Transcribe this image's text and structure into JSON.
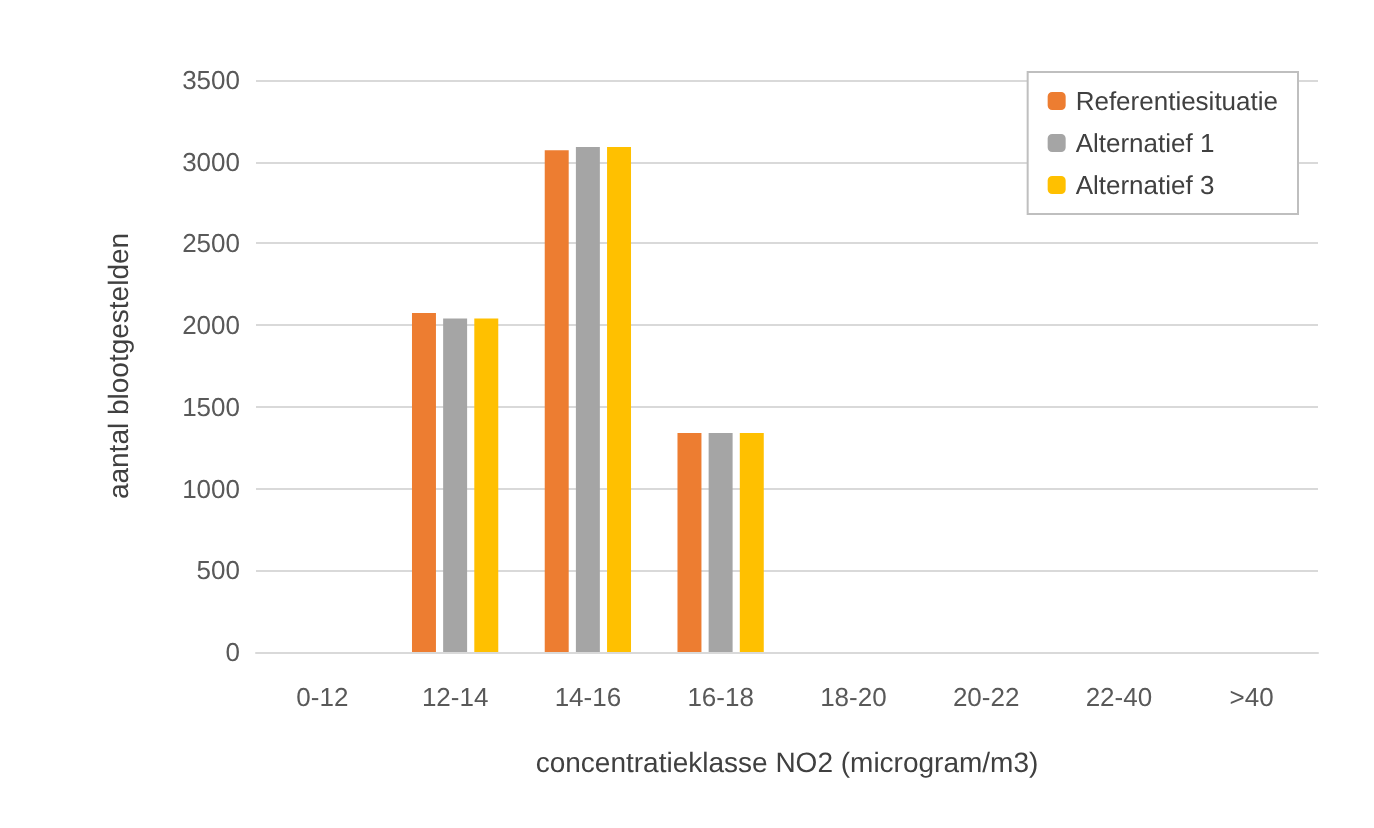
{
  "chart_data": {
    "type": "bar",
    "xlabel": "concentratieklasse NO2 (microgram/m3)",
    "ylabel": "aantal blootgestelden",
    "categories": [
      "0-12",
      "12-14",
      "14-16",
      "16-18",
      "18-20",
      "20-22",
      "22-40",
      ">40"
    ],
    "series": [
      {
        "name": "Referentiesituatie",
        "color": "#ed7d31",
        "values": [
          0,
          2075,
          3070,
          1340,
          0,
          0,
          0,
          0
        ]
      },
      {
        "name": "Alternatief 1",
        "color": "#a5a5a5",
        "values": [
          0,
          2040,
          3090,
          1340,
          0,
          0,
          0,
          0
        ]
      },
      {
        "name": "Alternatief 3",
        "color": "#ffc000",
        "values": [
          0,
          2040,
          3090,
          1340,
          0,
          0,
          0,
          0
        ]
      }
    ],
    "ylim": [
      0,
      3500
    ],
    "yticks": [
      0,
      500,
      1000,
      1500,
      2000,
      2500,
      3000,
      3500
    ],
    "grid": "y",
    "legend": "top right"
  }
}
